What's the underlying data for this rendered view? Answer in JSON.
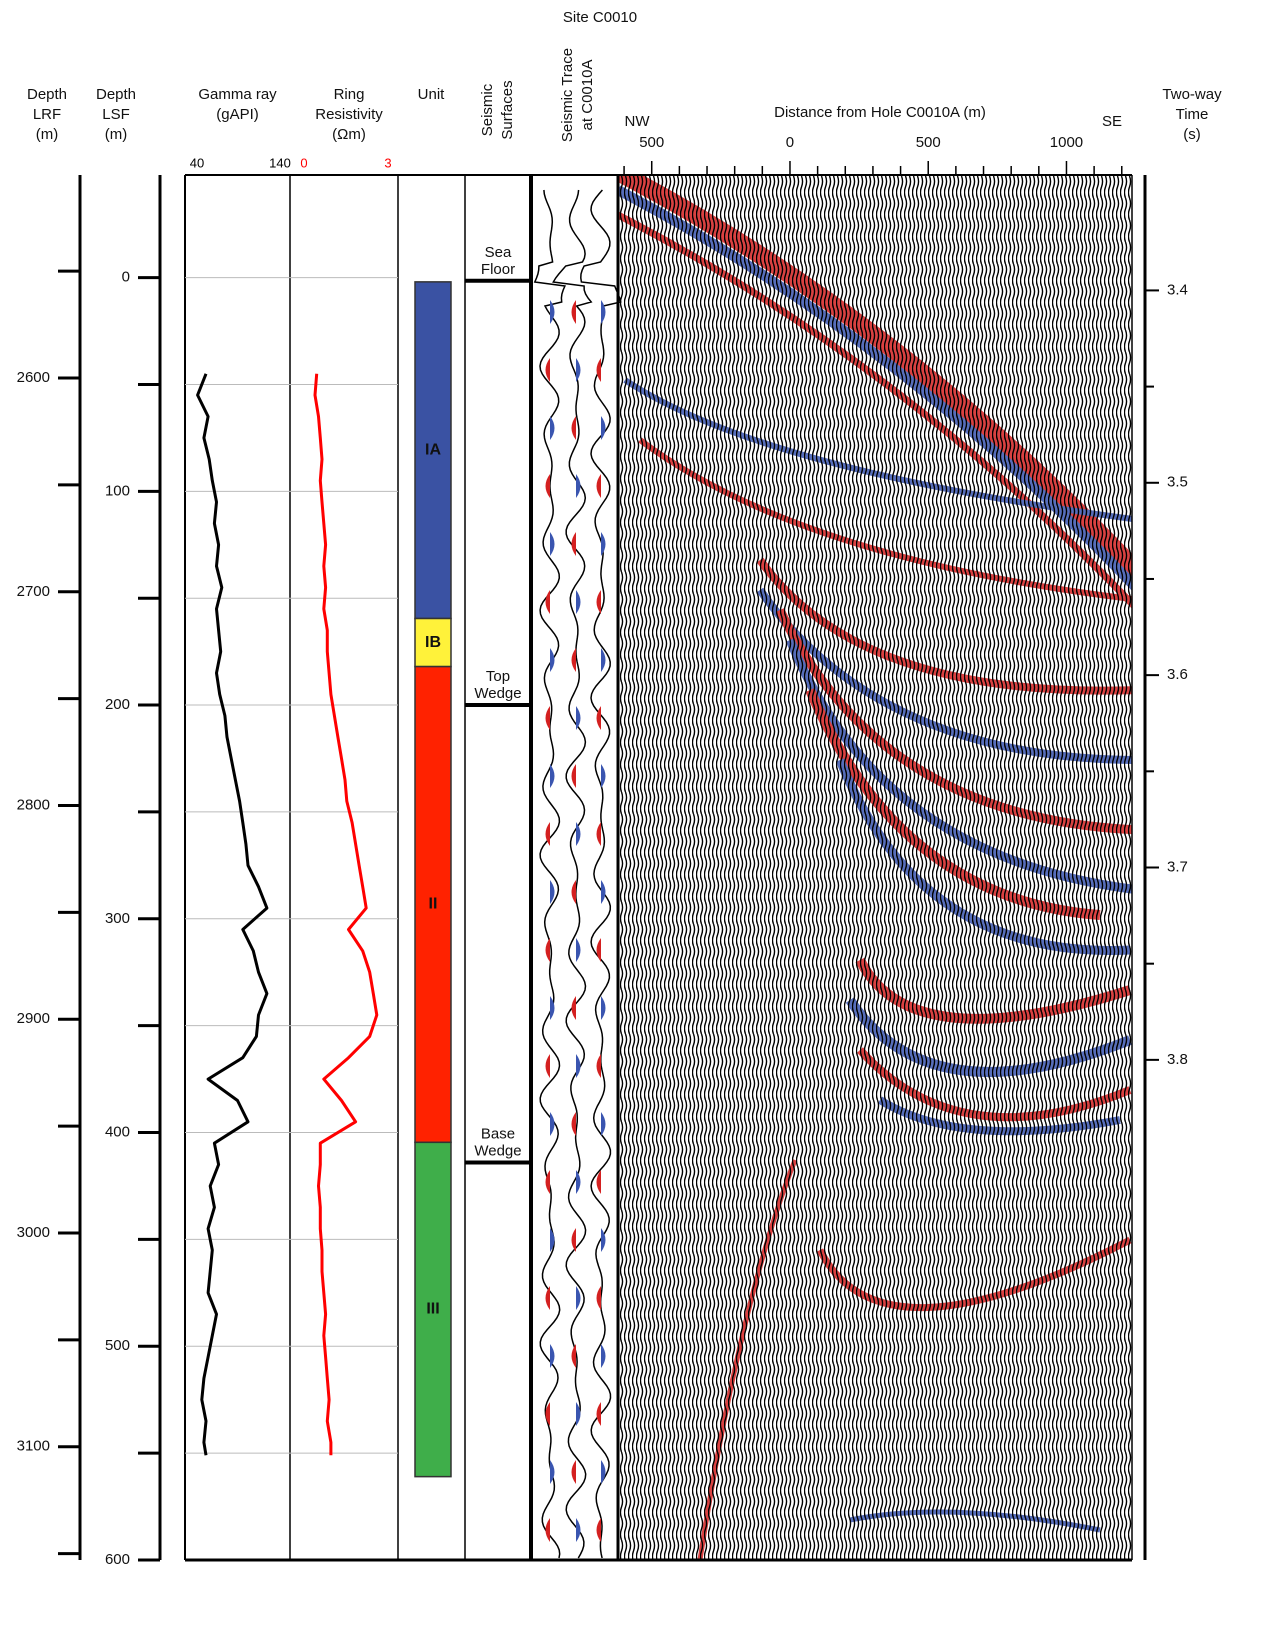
{
  "title": "Site C0010",
  "chart_data": [
    {
      "type": "depth-axis",
      "label": [
        "Depth",
        "LRF",
        "(m)"
      ],
      "ylim": [
        2505,
        3153
      ],
      "yticks": [
        2600,
        2700,
        2800,
        2900,
        3000,
        3100
      ],
      "minor_ticks": [
        2550,
        2650,
        2750,
        2850,
        2950,
        3050,
        3150
      ]
    },
    {
      "type": "depth-axis",
      "label": [
        "Depth",
        "LSF",
        "(m)"
      ],
      "ylim": [
        -48,
        600
      ],
      "yticks": [
        0,
        100,
        200,
        300,
        400,
        500,
        600
      ],
      "minor_ticks": [
        50,
        150,
        250,
        350,
        450,
        550
      ],
      "grid": true
    },
    {
      "type": "line",
      "title": [
        "Gamma ray",
        "(gAPI)"
      ],
      "xlim": [
        40,
        140
      ],
      "xticks": [
        40,
        140
      ],
      "color": "#000000",
      "tick_color": "#000000",
      "depth": [
        45,
        55,
        65,
        75,
        85,
        95,
        105,
        115,
        125,
        135,
        145,
        155,
        165,
        175,
        185,
        195,
        205,
        215,
        225,
        235,
        245,
        255,
        265,
        275,
        285,
        295,
        305,
        315,
        325,
        335,
        345,
        355,
        365,
        375,
        385,
        395,
        405,
        415,
        425,
        435,
        445,
        455,
        465,
        475,
        485,
        495,
        505,
        515,
        525,
        535,
        545,
        551
      ],
      "values": [
        60,
        52,
        62,
        58,
        63,
        66,
        70,
        68,
        72,
        70,
        75,
        70,
        72,
        74,
        70,
        73,
        78,
        80,
        84,
        88,
        92,
        95,
        98,
        100,
        110,
        118,
        95,
        105,
        110,
        118,
        110,
        108,
        95,
        62,
        90,
        100,
        68,
        72,
        64,
        68,
        62,
        66,
        64,
        62,
        70,
        66,
        62,
        58,
        56,
        60,
        58,
        60
      ]
    },
    {
      "type": "line",
      "title": [
        "Ring",
        "Resistivity",
        "(Ωm)"
      ],
      "xlim": [
        0,
        3
      ],
      "xticks": [
        0,
        3
      ],
      "color": "#ff0000",
      "tick_color": "#ff0000",
      "depth": [
        45,
        55,
        65,
        75,
        85,
        95,
        105,
        115,
        125,
        135,
        145,
        155,
        165,
        175,
        185,
        195,
        205,
        215,
        225,
        235,
        245,
        255,
        265,
        275,
        285,
        295,
        305,
        315,
        325,
        335,
        345,
        355,
        365,
        375,
        385,
        395,
        405,
        415,
        425,
        435,
        445,
        455,
        465,
        475,
        485,
        495,
        505,
        515,
        525,
        535,
        545,
        551
      ],
      "values": [
        0.7,
        0.65,
        0.75,
        0.8,
        0.85,
        0.8,
        0.85,
        0.9,
        0.95,
        0.9,
        0.95,
        0.9,
        1.0,
        1.0,
        1.05,
        1.1,
        1.2,
        1.3,
        1.4,
        1.5,
        1.55,
        1.7,
        1.8,
        1.9,
        2.0,
        2.1,
        1.6,
        2.0,
        2.2,
        2.3,
        2.4,
        2.2,
        1.6,
        0.9,
        1.4,
        1.8,
        0.8,
        0.8,
        0.75,
        0.8,
        0.8,
        0.85,
        0.85,
        0.9,
        0.95,
        0.9,
        0.95,
        1.0,
        1.05,
        1.0,
        1.1,
        1.1
      ]
    },
    {
      "type": "units",
      "title": "Unit",
      "units": [
        {
          "label": "IA",
          "top": 2,
          "base": 159.5,
          "color": "#3a52a3"
        },
        {
          "label": "IB",
          "top": 159.5,
          "base": 182,
          "color": "#fff23a"
        },
        {
          "label": "II",
          "top": 182,
          "base": 404.6,
          "color": "#ff2200"
        },
        {
          "label": "III",
          "top": 404.6,
          "base": 561,
          "color": "#3fae4a"
        }
      ]
    },
    {
      "type": "surfaces",
      "title": [
        "Seismic",
        "Surfaces"
      ],
      "surfaces": [
        {
          "label": [
            "Sea",
            "Floor"
          ],
          "depth": 1.5
        },
        {
          "label": [
            "Top",
            "Wedge"
          ],
          "depth": 200
        },
        {
          "label": [
            "Base",
            "Wedge"
          ],
          "depth": 414
        }
      ]
    },
    {
      "type": "trace",
      "title": [
        "Seismic Trace",
        "at C0010A"
      ]
    },
    {
      "type": "section",
      "title": "Distance from Hole C0010A (m)",
      "left_label": "NW",
      "right_label": "SE",
      "xlim": [
        -622,
        1237
      ],
      "xticks": [
        {
          "value": -500,
          "label": "500"
        },
        0,
        500,
        1000
      ],
      "minor_xticks": [
        -600,
        -400,
        -300,
        -200,
        -100,
        100,
        200,
        300,
        400,
        600,
        700,
        800,
        900,
        1100,
        1200
      ],
      "y2label": [
        "Two-way",
        "Time",
        "(s)"
      ],
      "y2lim": [
        3.34,
        4.06
      ],
      "y2ticks": [
        3.4,
        3.5,
        3.6,
        3.7,
        3.8
      ],
      "minor_y2ticks": [
        3.45,
        3.55,
        3.65,
        3.75
      ]
    }
  ]
}
